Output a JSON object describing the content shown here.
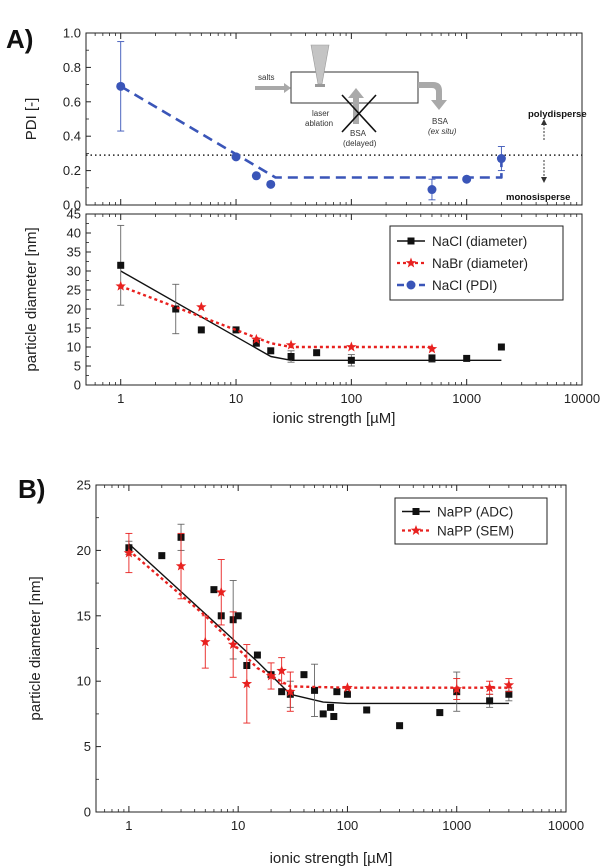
{
  "panels": {
    "a_label": "A)",
    "b_label": "B)"
  },
  "colors": {
    "black": "#111111",
    "red": "#e8211f",
    "blue": "#3a55b8",
    "grey": "#999999",
    "grid_dotted": "#222222"
  },
  "schematic": {
    "salts": "salts",
    "laser": "laser",
    "ablation": "ablation",
    "bsa_delayed_1": "BSA",
    "bsa_delayed_2": "(delayed)",
    "bsa_exsitu_1": "BSA",
    "bsa_exsitu_2": "(ex situ)"
  },
  "annotations": {
    "polydisperse": "polydisperse",
    "monosisperse": "monosisperse"
  },
  "chart_data": [
    {
      "id": "A_top",
      "type": "line",
      "ylabel": "PDI [-]",
      "xscale": "log",
      "xlim": [
        0.5,
        10000
      ],
      "ylim": [
        0.0,
        1.0
      ],
      "yticks": [
        0.0,
        0.2,
        0.4,
        0.6,
        0.8,
        1.0
      ],
      "ytick_labels": [
        "0.0",
        "0.2",
        "0.4",
        "0.6",
        "0.8",
        "1.0"
      ],
      "threshold_line": 0.29,
      "series": [
        {
          "name": "NaCl (PDI)",
          "marker": "circle",
          "points": [
            {
              "x": 1,
              "y": 0.69,
              "err": 0.26
            },
            {
              "x": 10,
              "y": 0.28,
              "err": 0
            },
            {
              "x": 15,
              "y": 0.17,
              "err": 0
            },
            {
              "x": 20,
              "y": 0.12,
              "err": 0
            },
            {
              "x": 500,
              "y": 0.09,
              "err": 0.06
            },
            {
              "x": 1000,
              "y": 0.15,
              "err": 0
            },
            {
              "x": 2000,
              "y": 0.27,
              "err": 0.07
            }
          ],
          "fit": [
            [
              1,
              0.69
            ],
            [
              22,
              0.16
            ],
            [
              2000,
              0.16
            ],
            [
              2000,
              0.27
            ]
          ]
        }
      ]
    },
    {
      "id": "A_bottom",
      "type": "scatter",
      "xlabel": "ionic strength [µM]",
      "ylabel": "particle diameter [nm]",
      "xscale": "log",
      "xlim": [
        0.5,
        10000
      ],
      "ylim": [
        0,
        45
      ],
      "yticks": [
        0,
        5,
        10,
        15,
        20,
        25,
        30,
        35,
        40,
        45
      ],
      "ytick_labels": [
        "0",
        "5",
        "10",
        "15",
        "20",
        "25",
        "30",
        "35",
        "40",
        "45"
      ],
      "xticks": [
        1,
        10,
        100,
        1000,
        10000
      ],
      "xtick_labels": [
        "1",
        "10",
        "100",
        "1000",
        "10000"
      ],
      "legend": [
        "NaCl (diameter)",
        "NaBr (diameter)",
        "NaCl (PDI)"
      ],
      "legend_position": "top-right",
      "series": [
        {
          "name": "NaCl (diameter)",
          "marker": "square",
          "points": [
            {
              "x": 1,
              "y": 31.5,
              "err": 10.5
            },
            {
              "x": 3,
              "y": 20,
              "err": 6.5
            },
            {
              "x": 5,
              "y": 14.5,
              "err": 0
            },
            {
              "x": 10,
              "y": 14.5,
              "err": 0
            },
            {
              "x": 15,
              "y": 11,
              "err": 0
            },
            {
              "x": 20,
              "y": 9,
              "err": 0
            },
            {
              "x": 30,
              "y": 7.5,
              "err": 1.5
            },
            {
              "x": 50,
              "y": 8.5,
              "err": 0
            },
            {
              "x": 100,
              "y": 6.5,
              "err": 1.5
            },
            {
              "x": 500,
              "y": 7,
              "err": 1
            },
            {
              "x": 1000,
              "y": 7,
              "err": 0
            },
            {
              "x": 2000,
              "y": 10,
              "err": 0
            }
          ],
          "fit": [
            [
              1,
              30
            ],
            [
              20,
              7.5
            ],
            [
              30,
              6.5
            ],
            [
              2000,
              6.5
            ]
          ]
        },
        {
          "name": "NaBr (diameter)",
          "marker": "star",
          "points": [
            {
              "x": 1,
              "y": 26,
              "err": 0
            },
            {
              "x": 5,
              "y": 20.5,
              "err": 0
            },
            {
              "x": 15,
              "y": 12,
              "err": 0
            },
            {
              "x": 30,
              "y": 10.5,
              "err": 0
            },
            {
              "x": 100,
              "y": 10,
              "err": 0
            },
            {
              "x": 500,
              "y": 9.5,
              "err": 0
            }
          ],
          "fit": [
            [
              1,
              26
            ],
            [
              20,
              11
            ],
            [
              30,
              10
            ],
            [
              500,
              10
            ]
          ]
        }
      ]
    },
    {
      "id": "B",
      "type": "scatter",
      "xlabel": "ionic strength [µM]",
      "ylabel": "particle diameter [nm]",
      "xscale": "log",
      "xlim": [
        0.5,
        10000
      ],
      "ylim": [
        0,
        25
      ],
      "yticks": [
        0,
        5,
        10,
        15,
        20,
        25
      ],
      "ytick_labels": [
        "0",
        "5",
        "10",
        "15",
        "20",
        "25"
      ],
      "xticks": [
        1,
        10,
        100,
        1000,
        10000
      ],
      "xtick_labels": [
        "1",
        "10",
        "100",
        "1000",
        "10000"
      ],
      "legend": [
        "NaPP (ADC)",
        "NaPP (SEM)"
      ],
      "legend_position": "top-right",
      "series": [
        {
          "name": "NaPP (ADC)",
          "marker": "square",
          "points": [
            {
              "x": 1,
              "y": 20.2,
              "err": 0.5
            },
            {
              "x": 2,
              "y": 19.6,
              "err": 0
            },
            {
              "x": 3,
              "y": 21,
              "err": 1
            },
            {
              "x": 6,
              "y": 17,
              "err": 0
            },
            {
              "x": 7,
              "y": 15,
              "err": 0
            },
            {
              "x": 9,
              "y": 14.7,
              "err": 3
            },
            {
              "x": 10,
              "y": 15,
              "err": 0
            },
            {
              "x": 12,
              "y": 11.2,
              "err": 0
            },
            {
              "x": 15,
              "y": 12,
              "err": 0
            },
            {
              "x": 20,
              "y": 10.5,
              "err": 0
            },
            {
              "x": 25,
              "y": 9.2,
              "err": 0
            },
            {
              "x": 30,
              "y": 9,
              "err": 1
            },
            {
              "x": 40,
              "y": 10.5,
              "err": 0
            },
            {
              "x": 50,
              "y": 9.3,
              "err": 2
            },
            {
              "x": 60,
              "y": 7.5,
              "err": 0
            },
            {
              "x": 70,
              "y": 8,
              "err": 0
            },
            {
              "x": 75,
              "y": 7.3,
              "err": 0
            },
            {
              "x": 80,
              "y": 9.2,
              "err": 0
            },
            {
              "x": 100,
              "y": 9,
              "err": 0
            },
            {
              "x": 150,
              "y": 7.8,
              "err": 0
            },
            {
              "x": 300,
              "y": 6.6,
              "err": 0
            },
            {
              "x": 700,
              "y": 7.6,
              "err": 0
            },
            {
              "x": 1000,
              "y": 9.2,
              "err": 1.5
            },
            {
              "x": 2000,
              "y": 8.5,
              "err": 0.5
            },
            {
              "x": 3000,
              "y": 9,
              "err": 0.5
            }
          ],
          "fit": [
            [
              1,
              20.5
            ],
            [
              15,
              11.5
            ],
            [
              30,
              9
            ],
            [
              60,
              8.4
            ],
            [
              100,
              8.3
            ],
            [
              3000,
              8.3
            ]
          ]
        },
        {
          "name": "NaPP (SEM)",
          "marker": "star",
          "points": [
            {
              "x": 1,
              "y": 19.8,
              "err": 1.5
            },
            {
              "x": 3,
              "y": 18.8,
              "err": 2.5
            },
            {
              "x": 5,
              "y": 13,
              "err": 2
            },
            {
              "x": 7,
              "y": 16.8,
              "err": 2.5
            },
            {
              "x": 9,
              "y": 12.8,
              "err": 2.5
            },
            {
              "x": 12,
              "y": 9.8,
              "err": 3
            },
            {
              "x": 20,
              "y": 10.4,
              "err": 1
            },
            {
              "x": 25,
              "y": 10.8,
              "err": 1
            },
            {
              "x": 30,
              "y": 9.2,
              "err": 1.5
            },
            {
              "x": 100,
              "y": 9.5,
              "err": 0
            },
            {
              "x": 1000,
              "y": 9.4,
              "err": 0.8
            },
            {
              "x": 2000,
              "y": 9.5,
              "err": 0.5
            },
            {
              "x": 3000,
              "y": 9.7,
              "err": 0.5
            }
          ],
          "fit": [
            [
              1,
              20
            ],
            [
              5,
              15
            ],
            [
              15,
              11
            ],
            [
              30,
              9.6
            ],
            [
              100,
              9.5
            ],
            [
              3000,
              9.5
            ]
          ]
        }
      ]
    }
  ]
}
